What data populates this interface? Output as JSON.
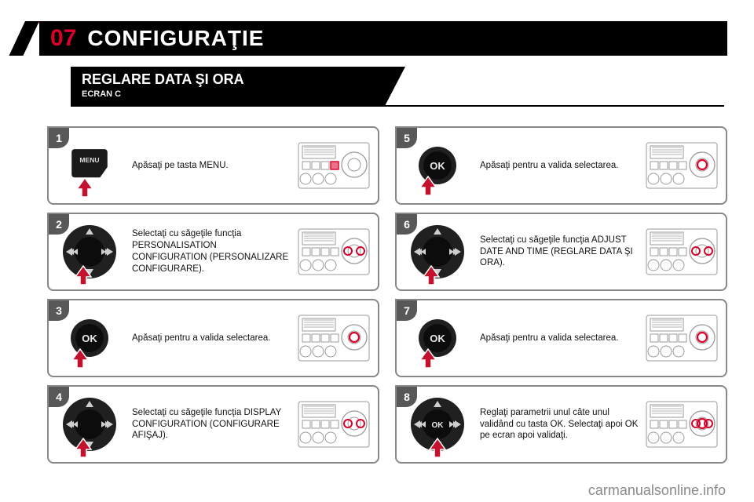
{
  "colors": {
    "accent": "#d9002a",
    "black": "#000000",
    "gray_border": "#888888",
    "badge_bg": "#585858",
    "arrow_fill": "#c3122e",
    "arrow_stroke": "#ffffff",
    "thumb_line": "#6b6b6b",
    "thumb_highlight": "#d9002a",
    "ok_fill": "#2a2a2a"
  },
  "header": {
    "number": "07",
    "title": "CONFIGURAŢIE"
  },
  "subheader": {
    "title": "REGLARE DATA ŞI ORA",
    "screen": "ECRAN C"
  },
  "steps": [
    {
      "n": "1",
      "control": "menu",
      "text": "Apăsaţi pe tasta MENU.",
      "thumb": "menu"
    },
    {
      "n": "2",
      "control": "dpad",
      "text": "Selectaţi cu săgeţile funcţia PERSONALISATION CONFIGURATION (PERSONALIZARE CONFIGURARE).",
      "thumb": "lr"
    },
    {
      "n": "3",
      "control": "ok",
      "text": "Apăsaţi pentru a valida selectarea.",
      "thumb": "ok"
    },
    {
      "n": "4",
      "control": "dpad",
      "text": "Selectaţi cu săgeţile funcţia DISPLAY CONFIGURATION (CONFIGURARE AFIŞAJ).",
      "thumb": "lr"
    },
    {
      "n": "5",
      "control": "ok",
      "text": "Apăsaţi pentru a valida selectarea.",
      "thumb": "ok"
    },
    {
      "n": "6",
      "control": "dpad",
      "text": "Selectaţi cu săgeţile funcţia ADJUST DATE AND TIME (REGLARE DATA ŞI ORA).",
      "thumb": "lr"
    },
    {
      "n": "7",
      "control": "ok",
      "text": "Apăsaţi pentru a valida selectarea.",
      "thumb": "ok"
    },
    {
      "n": "8",
      "control": "dpad_ok",
      "text": "Reglaţi parametrii unul câte unul validând cu tasta OK. Selectaţi apoi OK pe ecran apoi validaţi.",
      "thumb": "okx"
    }
  ],
  "watermark": "carmanualsonline.info",
  "menu_label": "MENU",
  "ok_label": "OK"
}
